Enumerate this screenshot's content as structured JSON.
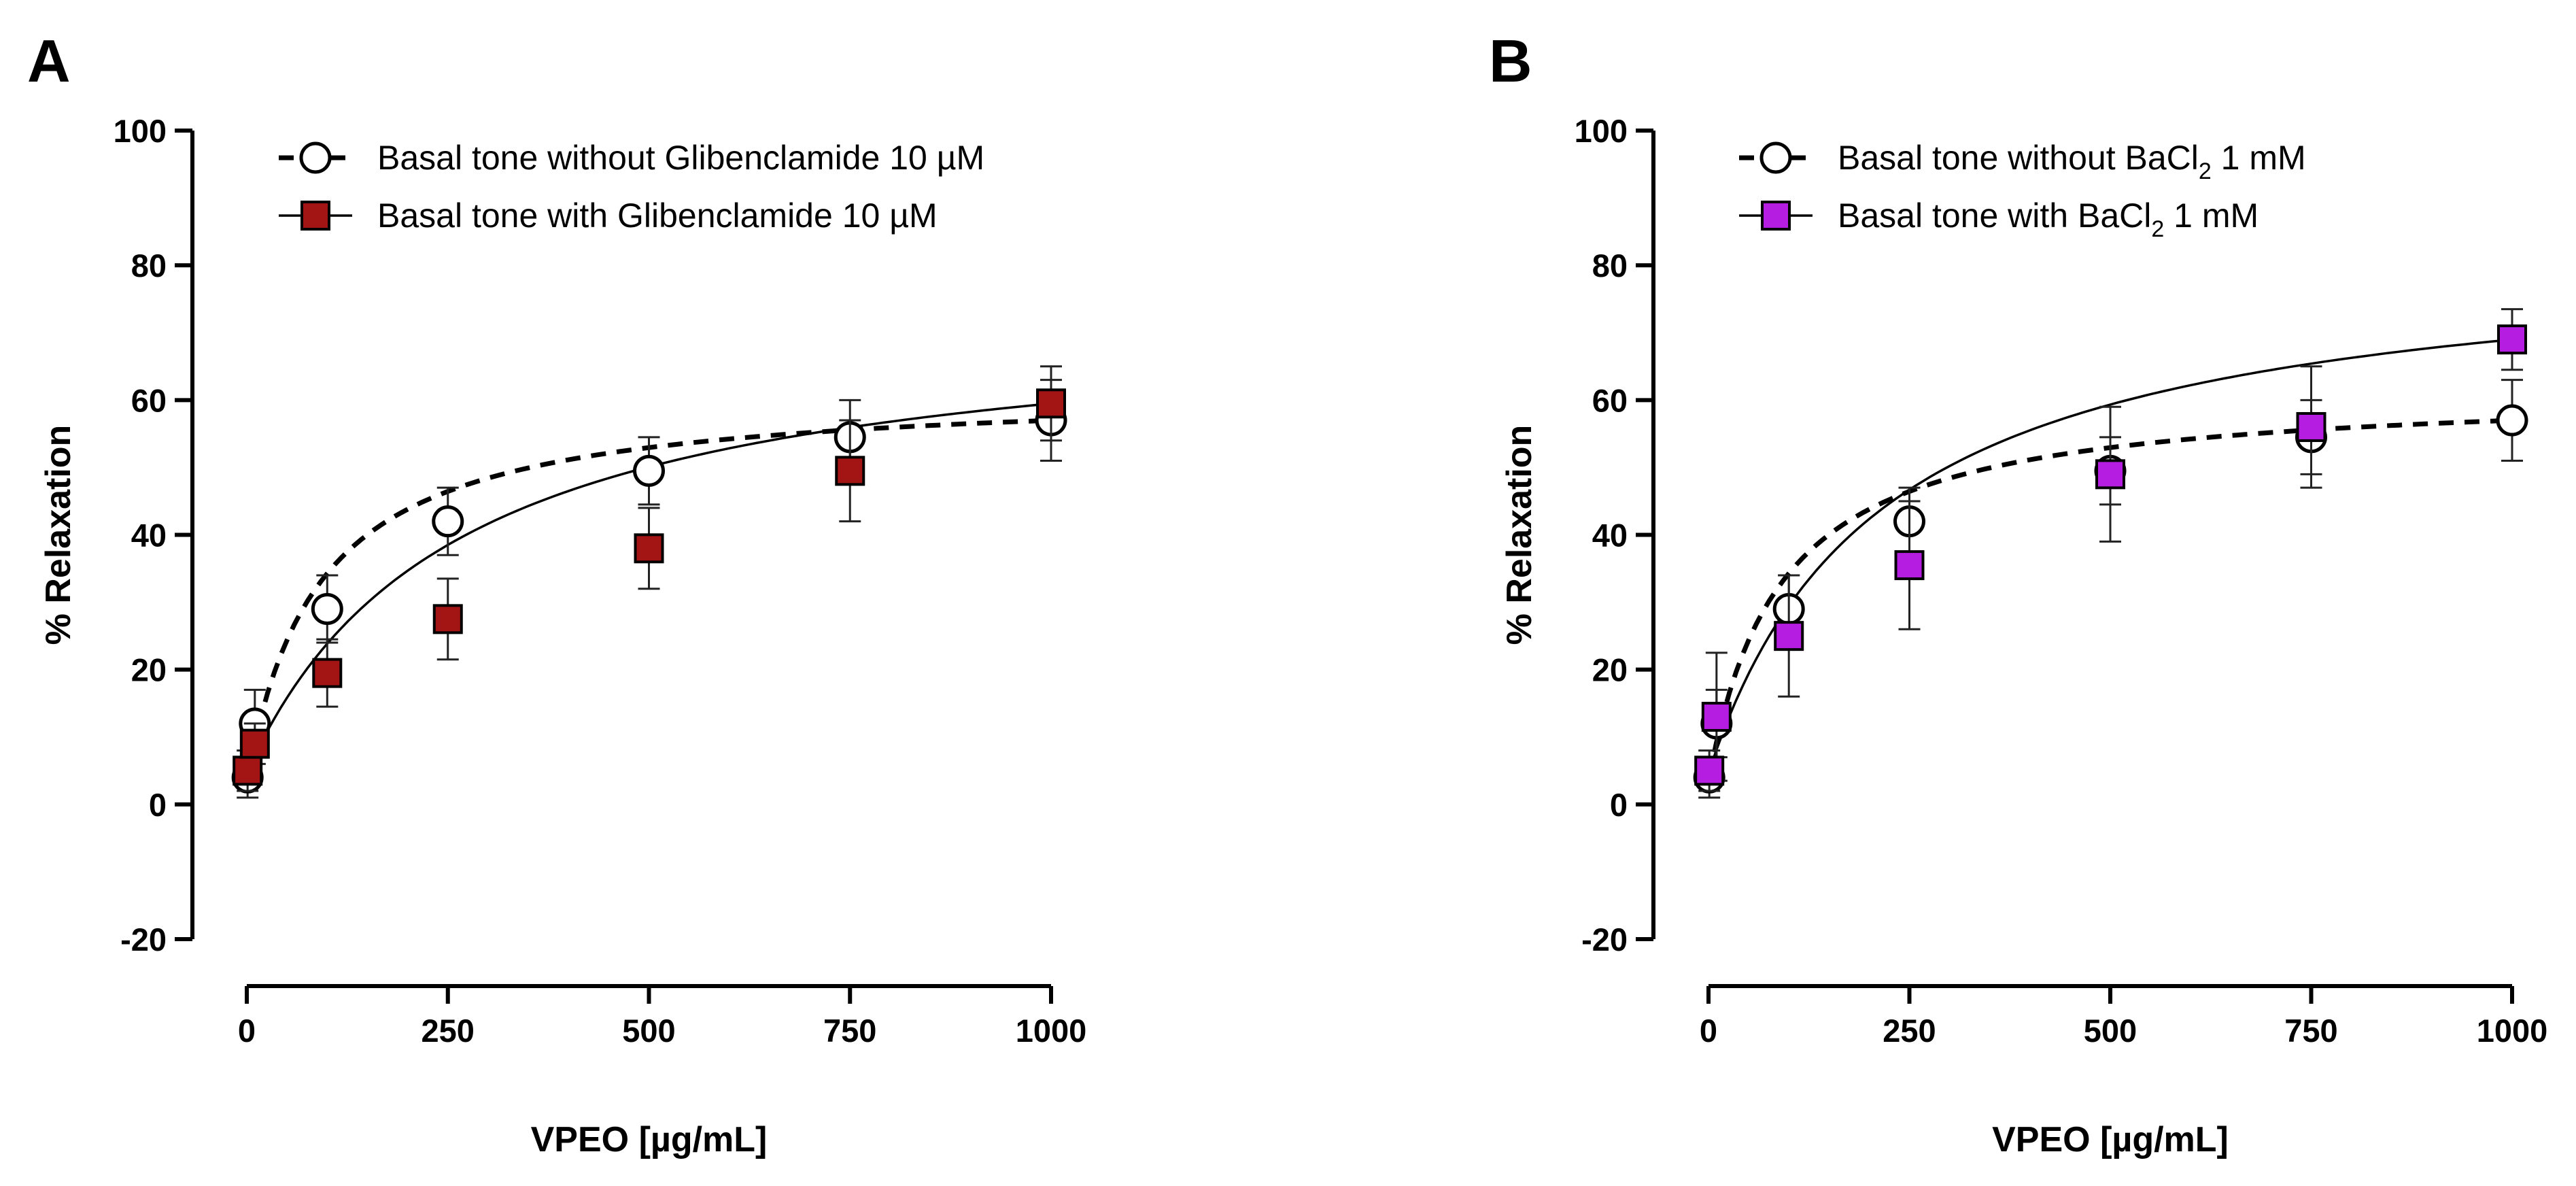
{
  "chart_data": [
    {
      "panel_letter": "A",
      "type": "scatter",
      "title": "",
      "xlabel": "VPEO [µg/mL]",
      "ylabel": "% Relaxation",
      "xlim": [
        0,
        1000
      ],
      "ylim": [
        -20,
        100
      ],
      "xticks": [
        "0",
        "250",
        "500",
        "750",
        "1000"
      ],
      "yticks": [
        "-20",
        "0",
        "20",
        "40",
        "60",
        "80",
        "100"
      ],
      "grid": false,
      "legend_position": "top-left",
      "series": [
        {
          "name": "Basal tone without Glibenclamide 10 µM",
          "name_main": "Basal tone without Glibenclamide 10 µM",
          "marker": "circle",
          "fill": "#ffffff",
          "line": "dashed",
          "x": [
            1,
            10,
            100,
            250,
            500,
            750,
            1000
          ],
          "y": [
            4,
            12,
            29,
            42,
            49.5,
            54.5,
            57
          ],
          "error": [
            3,
            5,
            5,
            5,
            5,
            5.5,
            6
          ]
        },
        {
          "name": "Basal tone with Glibenclamide 10 µM",
          "name_main": "Basal tone with Glibenclamide 10 µM",
          "marker": "square",
          "fill": "#a31515",
          "line": "solid",
          "x": [
            1,
            10,
            100,
            250,
            500,
            750,
            1000
          ],
          "y": [
            5,
            9,
            19.5,
            27.5,
            38,
            49.5,
            59.5
          ],
          "error": [
            3,
            3,
            5,
            6,
            6,
            7.5,
            5.5
          ]
        }
      ]
    },
    {
      "panel_letter": "B",
      "type": "scatter",
      "title": "",
      "xlabel": "VPEO [µg/mL]",
      "ylabel": "% Relaxation",
      "xlim": [
        0,
        1000
      ],
      "ylim": [
        -20,
        100
      ],
      "xticks": [
        "0",
        "250",
        "500",
        "750",
        "1000"
      ],
      "yticks": [
        "-20",
        "0",
        "20",
        "40",
        "60",
        "80",
        "100"
      ],
      "grid": false,
      "legend_position": "top-left",
      "series": [
        {
          "name": "Basal tone without BaCl2 1 mM",
          "name_main": "Basal tone without BaCl",
          "name_sub": "2",
          "name_tail": " 1 mM",
          "marker": "circle",
          "fill": "#ffffff",
          "line": "dashed",
          "x": [
            1,
            10,
            100,
            250,
            500,
            750,
            1000
          ],
          "y": [
            4,
            12,
            29,
            42,
            49.5,
            54.5,
            57
          ],
          "error": [
            3,
            5,
            5,
            5,
            5,
            5.5,
            6
          ]
        },
        {
          "name": "Basal tone with BaCl2 1 mM",
          "name_main": "Basal tone with BaCl",
          "name_sub": "2",
          "name_tail": " 1 mM",
          "marker": "square",
          "fill": "#b51de0",
          "line": "solid",
          "x": [
            1,
            10,
            100,
            250,
            500,
            750,
            1000
          ],
          "y": [
            5,
            13,
            25,
            35.5,
            49,
            56,
            69
          ],
          "error": [
            3,
            9.5,
            9,
            9.5,
            10,
            9,
            4.5
          ]
        }
      ]
    }
  ]
}
